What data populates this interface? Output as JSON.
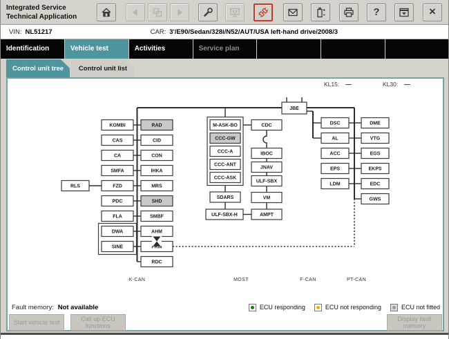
{
  "app": {
    "title_line1": "Integrated Service",
    "title_line2": "Technical Application"
  },
  "toolbar": {
    "icons": [
      {
        "name": "home",
        "state": "enabled"
      },
      {
        "name": "back",
        "state": "disabled"
      },
      {
        "name": "workshop",
        "state": "disabled"
      },
      {
        "name": "forward",
        "state": "disabled"
      },
      {
        "name": "wrench",
        "state": "enabled"
      },
      {
        "name": "monitor",
        "state": "disabled"
      },
      {
        "name": "connector",
        "state": "alert"
      },
      {
        "name": "mail",
        "state": "enabled"
      },
      {
        "name": "battery",
        "state": "enabled"
      },
      {
        "name": "printer",
        "state": "enabled"
      },
      {
        "name": "help",
        "state": "enabled"
      },
      {
        "name": "minimize",
        "state": "enabled"
      },
      {
        "name": "close",
        "state": "enabled"
      }
    ]
  },
  "vin_bar": {
    "vin_label": "VIN:",
    "vin_value": "NL51217",
    "car_label": "CAR:",
    "car_value": "3'/E90/Sedan/328i/N52/AUT/USA left-hand drive/2008/3"
  },
  "nav": {
    "tabs": [
      {
        "label": "Identification",
        "state": "normal"
      },
      {
        "label": "Vehicle test",
        "state": "active"
      },
      {
        "label": "Activities",
        "state": "normal"
      },
      {
        "label": "Service plan",
        "state": "disabled"
      },
      {
        "label": "",
        "state": "empty"
      },
      {
        "label": "",
        "state": "empty"
      },
      {
        "label": "",
        "state": "empty"
      }
    ]
  },
  "subtabs": [
    {
      "label": "Control unit tree",
      "active": true
    },
    {
      "label": "Control unit list",
      "active": false
    }
  ],
  "terminals": {
    "kl15_label": "KL15:",
    "kl15_value": "—",
    "kl30_label": "KL30:",
    "kl30_value": "—"
  },
  "tree": {
    "root": {
      "label": "JBE"
    },
    "kcan": {
      "bus_label": "K-CAN",
      "satellite": {
        "label": "RLS"
      },
      "left": [
        {
          "label": "KOMBI"
        },
        {
          "label": "CAS"
        },
        {
          "label": "CA"
        },
        {
          "label": "SMFA"
        },
        {
          "label": "FZD"
        },
        {
          "label": "PDC"
        },
        {
          "label": "FLA"
        },
        {
          "label": "DWA",
          "grouped": true
        },
        {
          "label": "SINE",
          "grouped": true
        }
      ],
      "right": [
        {
          "label": "RAD",
          "fitted": false
        },
        {
          "label": "CID"
        },
        {
          "label": "CON"
        },
        {
          "label": "IHKA"
        },
        {
          "label": "MRS"
        },
        {
          "label": "SHD",
          "fitted": false
        },
        {
          "label": "SMBF"
        },
        {
          "label": "AHM"
        },
        {
          "label": "FRM",
          "busy": true
        },
        {
          "label": "RDC"
        }
      ]
    },
    "most": {
      "bus_label": "MOST",
      "group": [
        {
          "label": "M-ASK-BO"
        },
        {
          "label": "CCC-GW",
          "fitted": false
        },
        {
          "label": "CCC-A"
        },
        {
          "label": "CCC-ANT"
        },
        {
          "label": "CCC-ASK"
        }
      ],
      "below": [
        {
          "label": "SDARS"
        },
        {
          "label": "ULF-SBX-H"
        }
      ],
      "chain": [
        {
          "label": "CDC"
        },
        {
          "label": "IBOC"
        },
        {
          "label": "JNAV"
        },
        {
          "label": "ULF-SBX"
        },
        {
          "label": "VM"
        },
        {
          "label": "AMPT"
        }
      ]
    },
    "fcan": {
      "bus_label": "F-CAN"
    },
    "ptcan": {
      "bus_label": "PT-CAN",
      "left": [
        {
          "label": "DSC"
        },
        {
          "label": "AL"
        },
        {
          "label": "ACC"
        },
        {
          "label": "EPS"
        },
        {
          "label": "LDM"
        }
      ],
      "right": [
        {
          "label": "DME"
        },
        {
          "label": "VTG"
        },
        {
          "label": "EGS"
        },
        {
          "label": "EKPS"
        },
        {
          "label": "EDC"
        },
        {
          "label": "GWS"
        }
      ]
    }
  },
  "legend": [
    {
      "label": "ECU responding",
      "color": "#0f7d0f",
      "box": "white"
    },
    {
      "label": "ECU not responding",
      "color": "#f0b000",
      "box": "white"
    },
    {
      "label": "ECU not fitted",
      "color": "#9a9a9a",
      "box": "gray"
    }
  ],
  "status": {
    "fault_memory_label": "Fault memory:",
    "fault_memory_value": "Not available"
  },
  "buttons": [
    {
      "label": "Start vehicle test"
    },
    {
      "label": "Call up ECU functions"
    },
    {
      "label": "Display fault memory"
    }
  ],
  "colors": {
    "accent_teal": "#4f959d",
    "panel_border": "#74a3a8",
    "not_fitted_fill": "#c9c9c9"
  }
}
